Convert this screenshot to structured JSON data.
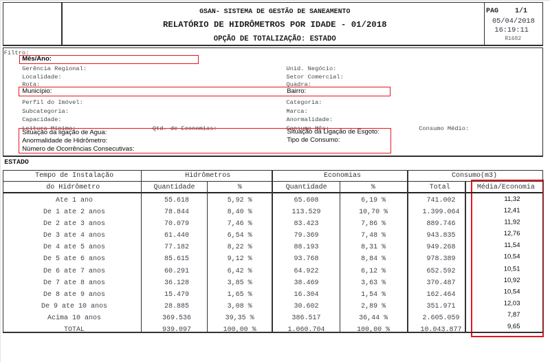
{
  "report": {
    "header": {
      "system_title": "GSAN- SISTEMA DE GESTÃO DE SANEAMENTO",
      "report_title": "RELATÓRIO DE HIDRÔMETROS POR IDADE - 01/2018",
      "totalization_option": "OPÇÃO DE TOTALIZAÇÃO: ESTADO",
      "page_line": "PAG    1/1",
      "date": "05/04/2018",
      "time": "16:19:11",
      "report_code": "R1682"
    },
    "filter": {
      "title": "Filtro:",
      "left_labels": [
        "Gerência Regional:",
        "Localidade:",
        "Rota:",
        "",
        "Perfil do Imóvel:",
        "Subcategoria:",
        "Capacidade:",
        "Leitura Mínima:"
      ],
      "right_labels": [
        "Unid. Negócio:",
        "Setor Comercial:",
        "Quadra:",
        "",
        "Categoria:",
        "Marca:",
        "Anormalidade:",
        "Consumo Mês:"
      ],
      "qtd_economias_label": "Qtd. de Economias:",
      "consumo_medio_label": "Consumo Médio:",
      "highlights": {
        "mes_ano": "Mês/Ano:",
        "municipio": "Município:",
        "bairro": "Bairro:",
        "situacao_agua": "Situação da ligação de Agua:",
        "situacao_esgoto": "Situação da Ligação de Esgoto:",
        "anormalidade_hidrometro": "Anormalidade de Hidrômetro:",
        "tipo_consumo": "Tipo de Consumo:",
        "ocorrencias": "Número de Ocorrências Consecutivas:"
      }
    },
    "section_label": "ESTADO",
    "table": {
      "group_headers": {
        "tempo": "Tempo de Instalação",
        "hidrometros": "Hidrômetros",
        "economias": "Economias",
        "consumo": "Consumo(m3)"
      },
      "sub_headers": {
        "tempo2": "do Hidrômetro",
        "h_qtd": "Quantidade",
        "h_pct": "%",
        "e_qtd": "Quantidade",
        "e_pct": "%",
        "total": "Total",
        "media": "Média/Economia"
      },
      "rows": [
        [
          "Ate 1 ano",
          "55.618",
          "5,92 %",
          "65.608",
          "6,19 %",
          "741.002",
          "11,32"
        ],
        [
          "De 1 ate 2 anos",
          "78.844",
          "8,40 %",
          "113.529",
          "10,70 %",
          "1.399.064",
          "12,41"
        ],
        [
          "De 2 ate 3 anos",
          "70.079",
          "7,46 %",
          "83.423",
          "7,86 %",
          "889.746",
          "11,92"
        ],
        [
          "De 3 ate 4 anos",
          "61.440",
          "6,54 %",
          "79.369",
          "7,48 %",
          "943.835",
          "12,76"
        ],
        [
          "De 4 ate 5 anos",
          "77.182",
          "8,22 %",
          "88.193",
          "8,31 %",
          "949.268",
          "11,54"
        ],
        [
          "De 5 ate 6 anos",
          "85.615",
          "9,12 %",
          "93.768",
          "8,84 %",
          "978.389",
          "10,54"
        ],
        [
          "De 6 ate 7 anos",
          "60.291",
          "6,42 %",
          "64.922",
          "6,12 %",
          "652.592",
          "10,51"
        ],
        [
          "De 7 ate 8 anos",
          "36.128",
          "3,85 %",
          "38.469",
          "3,63 %",
          "370.487",
          "10,92"
        ],
        [
          "De 8 ate 9 anos",
          "15.479",
          "1,65 %",
          "16.304",
          "1,54 %",
          "162.464",
          "10,54"
        ],
        [
          "De 9 ate 10 anos",
          "28.885",
          "3,08 %",
          "30.602",
          "2,89 %",
          "351.971",
          "12,03"
        ],
        [
          "Acima 10 anos",
          "369.536",
          "39,35 %",
          "386.517",
          "36,44 %",
          "2.605.059",
          "7,87"
        ],
        [
          "TOTAL",
          "939.097",
          "100,00 %",
          "1.060.704",
          "100,00 %",
          "10.043.877",
          "9,65"
        ]
      ]
    },
    "annotation_color": "#e8151b"
  }
}
